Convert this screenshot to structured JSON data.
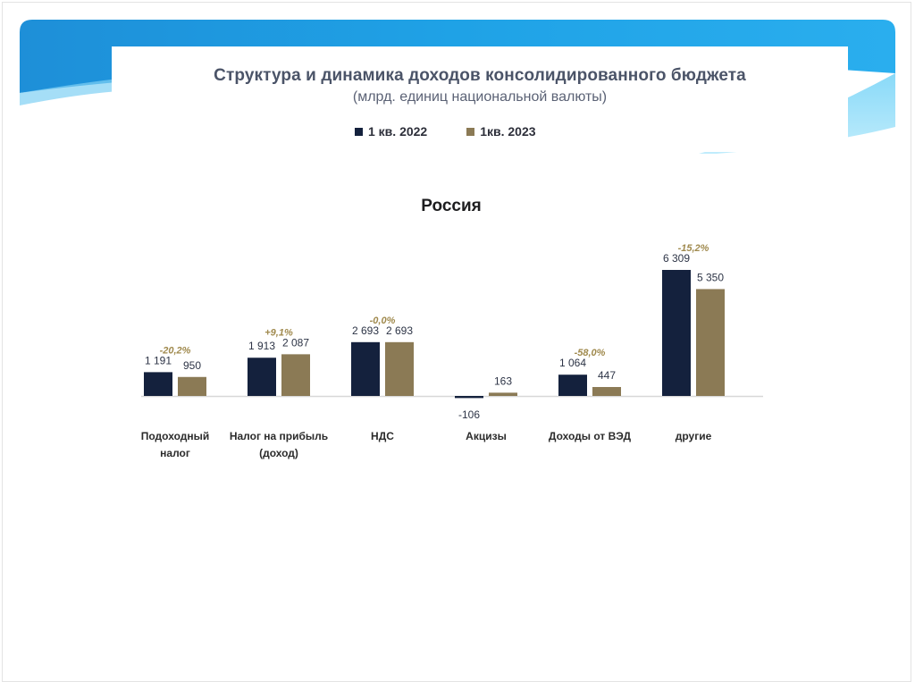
{
  "slide": {
    "title": "Структура и динамика доходов консолидированного бюджета",
    "subtitle": "(млрд. единиц национальной валюты)"
  },
  "legend": {
    "series1": "1 кв. 2022",
    "series2": "1кв. 2023"
  },
  "colors": {
    "series1": "#14213d",
    "series2": "#8b7a55",
    "change_label": "#a08a4e",
    "value_label": "#2d3446",
    "banner_dark": "#1f98de",
    "banner_light": "#5cc3f2"
  },
  "chart_data": {
    "type": "bar",
    "title": "Россия",
    "categories": [
      "Подоходный налог",
      "Налог на прибыль (доход)",
      "НДС",
      "Акцизы",
      "Доходы от ВЭД",
      "другие"
    ],
    "category_lines": [
      [
        "Подоходный",
        "налог"
      ],
      [
        "Налог на прибыль",
        "(доход)"
      ],
      [
        "НДС"
      ],
      [
        "Акцизы"
      ],
      [
        "Доходы от ВЭД"
      ],
      [
        "другие"
      ]
    ],
    "series": [
      {
        "name": "1 кв. 2022",
        "values": [
          1191,
          1913,
          2693,
          -106,
          1064,
          6309
        ],
        "labels": [
          "1 191",
          "1 913",
          "2 693",
          "-106",
          "1 064",
          "6 309"
        ]
      },
      {
        "name": "1кв. 2023",
        "values": [
          950,
          2087,
          2693,
          163,
          447,
          5350
        ],
        "labels": [
          "950",
          "2 087",
          "2 693",
          "163",
          "447",
          "5 350"
        ]
      }
    ],
    "changes": [
      "-20,2%",
      "+9,1%",
      "-0,0%",
      "",
      "-58,0%",
      "-15,2%"
    ],
    "ylim": [
      -106,
      6309
    ],
    "xlabel": "",
    "ylabel": "",
    "grid": false
  }
}
